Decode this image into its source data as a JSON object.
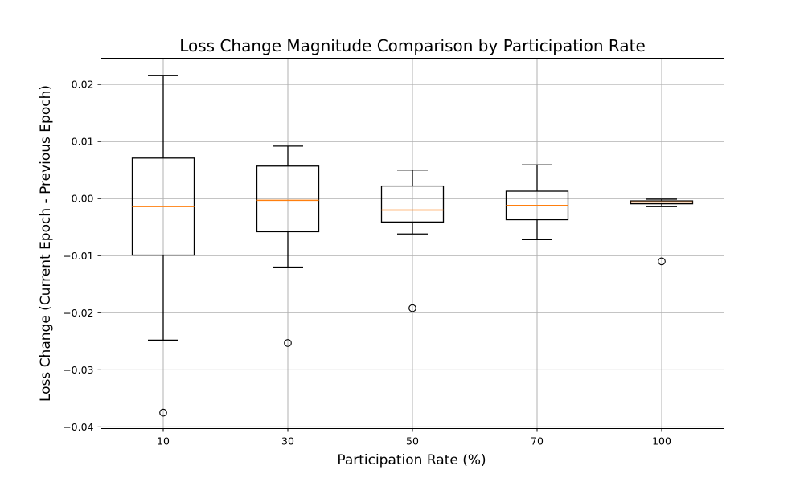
{
  "chart_data": {
    "type": "box",
    "title": "Loss Change Magnitude Comparison by Participation Rate",
    "xlabel": "Participation Rate (%)",
    "ylabel": "Loss Change (Current Epoch - Previous Epoch)",
    "categories": [
      "10",
      "30",
      "50",
      "70",
      "100"
    ],
    "ylim": [
      -0.0403,
      0.0246
    ],
    "yticks": [
      0.02,
      0.01,
      0.0,
      -0.01,
      -0.02,
      -0.03,
      -0.04
    ],
    "ytick_labels": [
      "0.02",
      "0.01",
      "0.00",
      "−0.01",
      "−0.02",
      "−0.03",
      "−0.04"
    ],
    "grid": true,
    "colors": {
      "box": "#000000",
      "median": "#ff7f0e",
      "grid": "#b0b0b0"
    },
    "boxes": [
      {
        "category": "10",
        "whisker_low": -0.0248,
        "q1": -0.0099,
        "median": -0.0014,
        "q3": 0.0071,
        "whisker_high": 0.0216,
        "fliers": [
          -0.0375
        ]
      },
      {
        "category": "30",
        "whisker_low": -0.012,
        "q1": -0.0058,
        "median": -0.0003,
        "q3": 0.0057,
        "whisker_high": 0.0092,
        "fliers": [
          -0.0253
        ]
      },
      {
        "category": "50",
        "whisker_low": -0.0062,
        "q1": -0.0041,
        "median": -0.002,
        "q3": 0.0022,
        "whisker_high": 0.005,
        "fliers": [
          -0.0192
        ]
      },
      {
        "category": "70",
        "whisker_low": -0.0072,
        "q1": -0.0037,
        "median": -0.0012,
        "q3": 0.0013,
        "whisker_high": 0.0059,
        "fliers": []
      },
      {
        "category": "100",
        "whisker_low": -0.0014,
        "q1": -0.0009,
        "median": -0.0006,
        "q3": -0.0004,
        "whisker_high": -0.0001,
        "fliers": [
          -0.011
        ]
      }
    ]
  }
}
